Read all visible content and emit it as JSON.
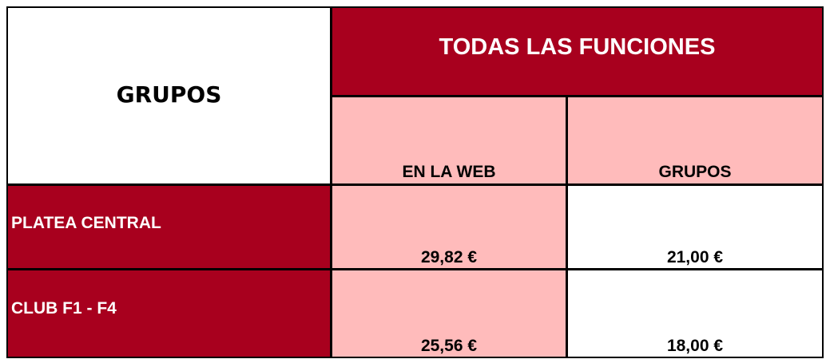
{
  "table": {
    "corner_label": "GRUPOS",
    "title": "TODAS LAS FUNCIONES",
    "columns": [
      "EN LA WEB",
      "GRUPOS"
    ],
    "rows": [
      {
        "label": "PLATEA CENTRAL",
        "values": [
          "29,82 €",
          "21,00 €"
        ]
      },
      {
        "label": "CLUB F1 - F4",
        "values": [
          "25,56 €",
          "18,00 €"
        ]
      }
    ],
    "colors": {
      "header_red": "#a8001e",
      "pink": "#ffbbbb"
    }
  }
}
